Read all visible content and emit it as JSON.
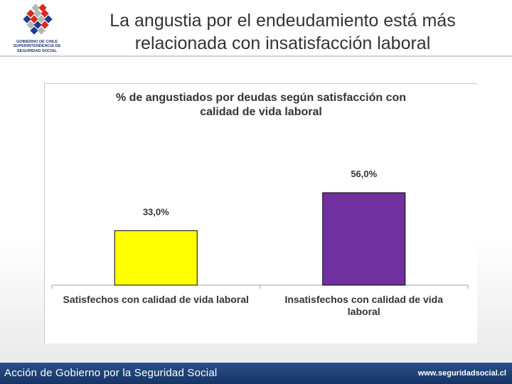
{
  "logo": {
    "line1": "GOBIERNO DE CHILE",
    "line2": "SUPERINTENDENCIA DE",
    "line3": "SEGURIDAD SOCIAL",
    "colors": {
      "red": "#d52b1e",
      "blue": "#1f3a8a",
      "gray": "#b5b5b5"
    }
  },
  "slide": {
    "title_line1": "La angustia por el endeudamiento está más",
    "title_line2": "relacionada con insatisfacción laboral"
  },
  "chart_data": {
    "type": "bar",
    "title_line1": "% de angustiados por deudas según satisfacción con",
    "title_line2": "calidad de vida laboral",
    "categories": [
      [
        "Satisfechos con calidad de vida laboral"
      ],
      [
        "Insatisfechos con calidad de vida",
        "laboral"
      ]
    ],
    "values": [
      33.0,
      56.0
    ],
    "value_labels": [
      "33,0%",
      "56,0%"
    ],
    "colors": [
      "#ffff00",
      "#7030a0"
    ],
    "ylim": [
      0,
      70
    ],
    "xlabel": "",
    "ylabel": "",
    "grid": false
  },
  "footer": {
    "left_text": "Acción de Gobierno por la Seguridad Social",
    "right_text": "www.seguridadsocial.cl"
  }
}
